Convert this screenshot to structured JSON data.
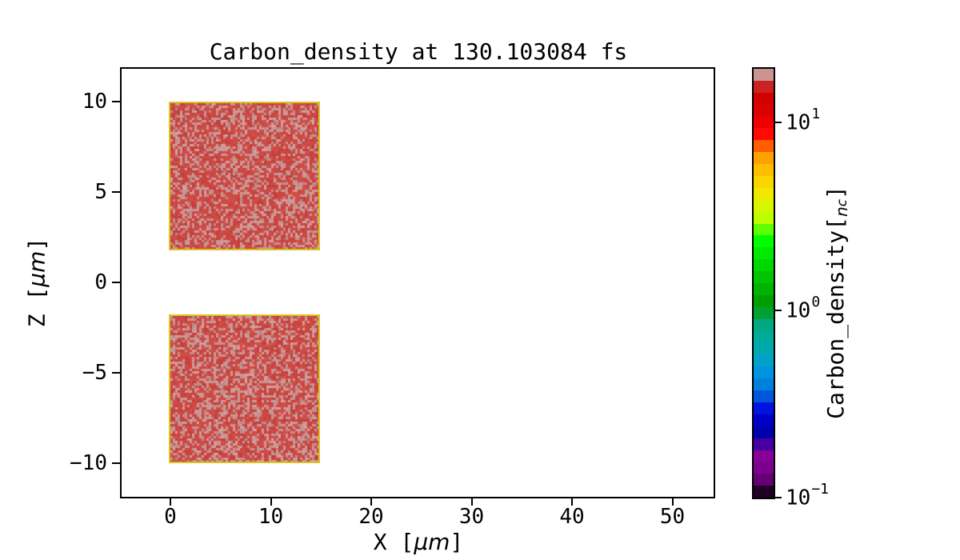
{
  "figure": {
    "title": "Carbon_density at 130.103084 fs"
  },
  "axes": {
    "xlabel_prefix": "X [",
    "xlabel_unit": "μm",
    "xlabel_suffix": "]",
    "ylabel_prefix": "Z [",
    "ylabel_unit": "μm",
    "ylabel_suffix": "]"
  },
  "colorbar": {
    "label_prefix": "Carbon_density[",
    "label_symbol": "n",
    "label_subscript": "c",
    "label_suffix": "]",
    "tick_labels": [
      {
        "base": "10",
        "exp": "1",
        "value": 10
      },
      {
        "base": "10",
        "exp": "0",
        "value": 1
      },
      {
        "base": "10",
        "exp": "−1",
        "value": 0.1
      }
    ]
  },
  "chart_data": {
    "type": "heatmap",
    "title": "Carbon_density at 130.103084 fs",
    "time_fs": 130.103084,
    "xlabel": "X [μm]",
    "ylabel": "Z [μm]",
    "xlim": [
      -5,
      55
    ],
    "ylim": [
      -11.9,
      11.9
    ],
    "x_ticks": [
      0,
      10,
      20,
      30,
      40,
      50
    ],
    "x_tick_labels": [
      "0",
      "10",
      "20",
      "30",
      "40",
      "50"
    ],
    "y_ticks": [
      10,
      5,
      0,
      -5,
      -10
    ],
    "y_tick_labels": [
      "10",
      "5",
      "0",
      "−5",
      "−10"
    ],
    "grid": false,
    "legend": false,
    "background_density_nc": 0,
    "regions": [
      {
        "name": "upper-slab",
        "x_um": [
          0,
          15
        ],
        "z_um": [
          1.8,
          10
        ],
        "mean_density_nc": 10,
        "speckle_density_nc": 18,
        "appearance": "red with light rosy speckle, thin yellow edge"
      },
      {
        "name": "lower-slab",
        "x_um": [
          0,
          15
        ],
        "z_um": [
          -10,
          -1.8
        ],
        "mean_density_nc": 10,
        "speckle_density_nc": 18,
        "appearance": "red with light rosy speckle, thin yellow edge"
      }
    ],
    "colorbar": {
      "label": "Carbon_density[n_c]",
      "scale": "log",
      "range_nc": [
        0.1,
        20
      ],
      "ticks": [
        10,
        1,
        0.1
      ],
      "colormap": "nipy_spectral",
      "segments": 36,
      "position": "right"
    },
    "colors": {
      "patch_red": "#ce4944",
      "patch_red_dark": "#c5403c",
      "patch_red_light": "#d14f48",
      "patch_speckle": "#c89795",
      "patch_speckle_dark": "#bd8b8a",
      "patch_speckle_light": "#d2a19e",
      "patch_edge_yellow": "#d9c51e",
      "patch_edge_orange": "#e0731e",
      "axis_color": "#000000",
      "background": "#ffffff",
      "colormap_stops": [
        [
          0.0,
          "#000000"
        ],
        [
          0.05,
          "#770088"
        ],
        [
          0.1,
          "#880099"
        ],
        [
          0.15,
          "#0000aa"
        ],
        [
          0.2,
          "#0000dd"
        ],
        [
          0.25,
          "#0077dd"
        ],
        [
          0.3,
          "#0099dd"
        ],
        [
          0.35,
          "#00aaaa"
        ],
        [
          0.4,
          "#00aa88"
        ],
        [
          0.45,
          "#009900"
        ],
        [
          0.5,
          "#00bb00"
        ],
        [
          0.55,
          "#00dd00"
        ],
        [
          0.6,
          "#00ff00"
        ],
        [
          0.65,
          "#bbff00"
        ],
        [
          0.7,
          "#eeee00"
        ],
        [
          0.75,
          "#ffcc00"
        ],
        [
          0.8,
          "#ff9900"
        ],
        [
          0.85,
          "#ff0000"
        ],
        [
          0.9,
          "#dd0000"
        ],
        [
          0.95,
          "#cc0000"
        ],
        [
          1.0,
          "#cccccc"
        ]
      ]
    }
  }
}
